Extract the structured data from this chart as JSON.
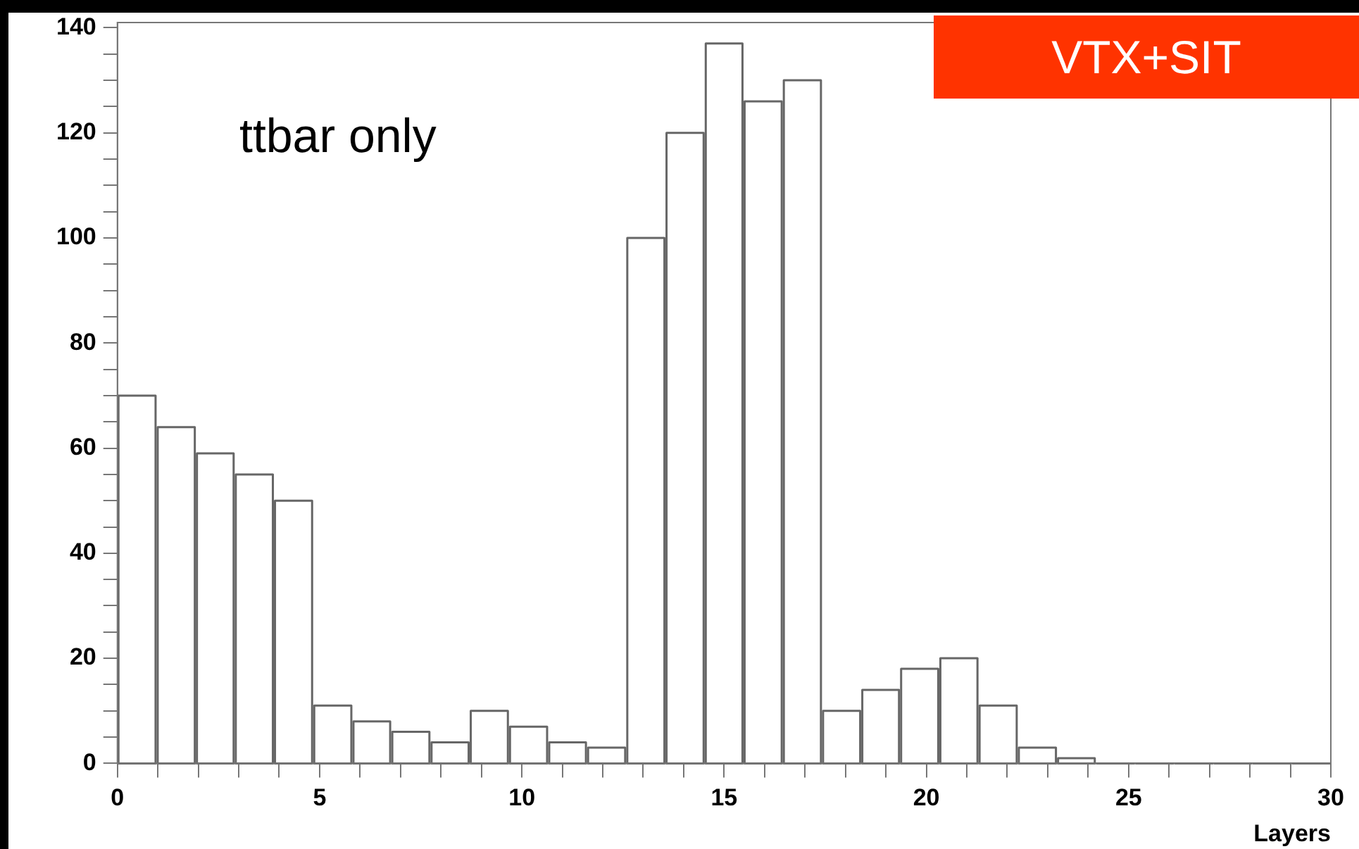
{
  "chart_data": {
    "type": "histogram",
    "xlabel": "Layers",
    "bins": [
      0,
      0.97,
      1.94,
      2.9,
      3.87,
      4.84,
      5.81,
      6.77,
      7.74,
      8.71,
      9.68,
      10.65,
      11.61,
      12.58,
      13.55,
      14.52,
      15.48,
      16.45,
      17.42,
      18.39,
      19.35,
      20.32,
      21.29,
      22.26,
      23.23,
      24.19,
      25.16,
      26.13,
      27.1,
      28.06,
      29.03,
      30
    ],
    "values": [
      70,
      64,
      59,
      55,
      50,
      11,
      8,
      6,
      4,
      10,
      7,
      4,
      3,
      100,
      120,
      137,
      126,
      130,
      10,
      14,
      18,
      20,
      11,
      3,
      1,
      0,
      0,
      0,
      0,
      0,
      0
    ],
    "color": "#666666",
    "xlim": [
      0,
      30
    ],
    "xticks": [
      0,
      {
        "value": 1,
        "label": null
      },
      {
        "value": 2,
        "label": null
      },
      {
        "value": 3,
        "label": null
      },
      {
        "value": 4,
        "label": null
      },
      5,
      {
        "value": 6,
        "label": null
      },
      {
        "value": 7,
        "label": null
      },
      {
        "value": 8,
        "label": null
      },
      {
        "value": 9,
        "label": null
      },
      10,
      {
        "value": 11,
        "label": null
      },
      {
        "value": 12,
        "label": null
      },
      {
        "value": 13,
        "label": null
      },
      {
        "value": 14,
        "label": null
      },
      15,
      {
        "value": 16,
        "label": null
      },
      {
        "value": 17,
        "label": null
      },
      {
        "value": 18,
        "label": null
      },
      {
        "value": 19,
        "label": null
      },
      20,
      {
        "value": 21,
        "label": null
      },
      {
        "value": 22,
        "label": null
      },
      {
        "value": 23,
        "label": null
      },
      {
        "value": 24,
        "label": null
      },
      25,
      {
        "value": 26,
        "label": null
      },
      {
        "value": 27,
        "label": null
      },
      {
        "value": 28,
        "label": null
      },
      {
        "value": 29,
        "label": null
      },
      30
    ],
    "ylim": [
      0,
      141
    ],
    "yticks": [
      0,
      {
        "value": 5,
        "label": null
      },
      {
        "value": 10,
        "label": null
      },
      {
        "value": 15,
        "label": null
      },
      20,
      {
        "value": 25,
        "label": null
      },
      {
        "value": 30,
        "label": null
      },
      {
        "value": 35,
        "label": null
      },
      40,
      {
        "value": 45,
        "label": null
      },
      {
        "value": 50,
        "label": null
      },
      {
        "value": 55,
        "label": null
      },
      60,
      {
        "value": 65,
        "label": null
      },
      {
        "value": 70,
        "label": null
      },
      {
        "value": 75,
        "label": null
      },
      80,
      {
        "value": 85,
        "label": null
      },
      {
        "value": 90,
        "label": null
      },
      {
        "value": 95,
        "label": null
      },
      100,
      {
        "value": 105,
        "label": null
      },
      {
        "value": 110,
        "label": null
      },
      {
        "value": 115,
        "label": null
      },
      120,
      {
        "value": 125,
        "label": null
      },
      {
        "value": 130,
        "label": null
      },
      {
        "value": 135,
        "label": null
      },
      140
    ],
    "grid": false,
    "legend": false,
    "annotations": [
      "ttbar only",
      "VTX+SIT"
    ]
  }
}
